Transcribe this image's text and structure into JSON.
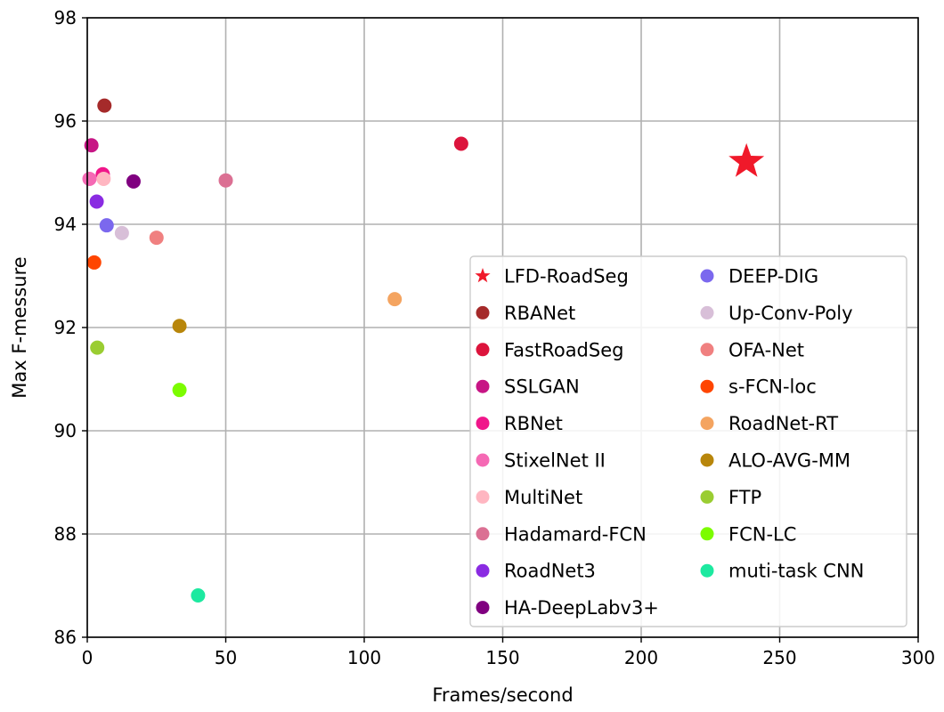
{
  "chart_data": {
    "type": "scatter",
    "title": "",
    "xlabel": "Frames/second",
    "ylabel": "Max F-messure",
    "xlim": [
      0,
      300
    ],
    "ylim": [
      86,
      98
    ],
    "xticks": [
      0,
      50,
      100,
      150,
      200,
      250,
      300
    ],
    "yticks": [
      86,
      88,
      90,
      92,
      94,
      96,
      98
    ],
    "grid": true,
    "legend_position": "lower-right",
    "legend_columns": 2,
    "series": [
      {
        "name": "LFD-RoadSeg",
        "marker": "star",
        "color": "#f0192a",
        "x": 238,
        "y": 95.21
      },
      {
        "name": "RBANet",
        "marker": "circle",
        "color": "#a52a2a",
        "x": 6.2,
        "y": 96.3
      },
      {
        "name": "FastRoadSeg",
        "marker": "circle",
        "color": "#dc143c",
        "x": 135,
        "y": 95.56
      },
      {
        "name": "SSLGAN",
        "marker": "circle",
        "color": "#c71585",
        "x": 1.5,
        "y": 95.53
      },
      {
        "name": "RBNet",
        "marker": "circle",
        "color": "#f0168a",
        "x": 5.6,
        "y": 94.97
      },
      {
        "name": "StixelNet II",
        "marker": "circle",
        "color": "#f569b4",
        "x": 0.8,
        "y": 94.88
      },
      {
        "name": "MultiNet",
        "marker": "circle",
        "color": "#ffb6c1",
        "x": 5.9,
        "y": 94.88
      },
      {
        "name": "Hadamard-FCN",
        "marker": "circle",
        "color": "#db7093",
        "x": 50,
        "y": 94.85
      },
      {
        "name": "RoadNet3",
        "marker": "circle",
        "color": "#8a2be2",
        "x": 3.4,
        "y": 94.44
      },
      {
        "name": "HA-DeepLabv3+",
        "marker": "circle",
        "color": "#800080",
        "x": 16.7,
        "y": 94.83
      },
      {
        "name": "DEEP-DIG",
        "marker": "circle",
        "color": "#7b68ee",
        "x": 7,
        "y": 93.98
      },
      {
        "name": "Up-Conv-Poly",
        "marker": "circle",
        "color": "#d8bfd8",
        "x": 12.5,
        "y": 93.83
      },
      {
        "name": "OFA-Net",
        "marker": "circle",
        "color": "#f08080",
        "x": 25,
        "y": 93.74
      },
      {
        "name": "s-FCN-loc",
        "marker": "circle",
        "color": "#ff4500",
        "x": 2.5,
        "y": 93.26
      },
      {
        "name": "RoadNet-RT",
        "marker": "circle",
        "color": "#f4a460",
        "x": 111,
        "y": 92.55
      },
      {
        "name": "ALO-AVG-MM",
        "marker": "circle",
        "color": "#b8860b",
        "x": 33.3,
        "y": 92.03
      },
      {
        "name": "FTP",
        "marker": "circle",
        "color": "#9acd32",
        "x": 3.6,
        "y": 91.61
      },
      {
        "name": "FCN-LC",
        "marker": "circle",
        "color": "#7cfc00",
        "x": 33.3,
        "y": 90.79
      },
      {
        "name": "muti-task CNN",
        "marker": "circle",
        "color": "#1de9a0",
        "x": 40,
        "y": 86.81
      }
    ]
  }
}
